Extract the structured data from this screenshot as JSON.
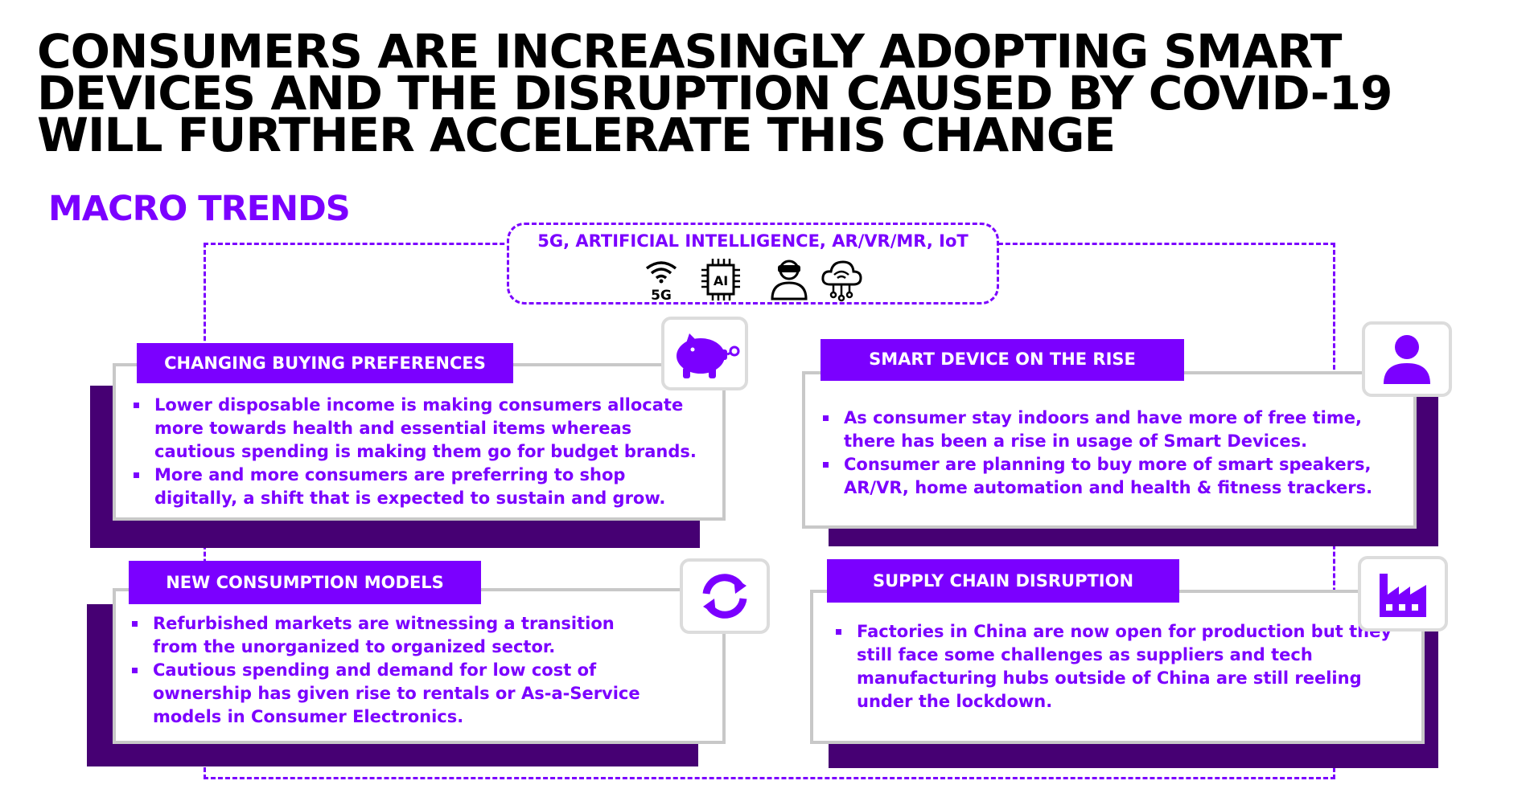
{
  "title_lines": [
    "CONSUMERS ARE INCREASINGLY ADOPTING SMART",
    "DEVICES AND THE DISRUPTION CAUSED BY COVID-19",
    "WILL FURTHER ACCELERATE THIS CHANGE"
  ],
  "section_title": "MACRO TRENDS",
  "tech": {
    "label": "5G, ARTIFICIAL INTELLIGENCE, AR/VR/MR, IoT",
    "icon_5g_text": "5G",
    "icon_ai_text": "AI",
    "icons": [
      "wifi-5g-icon",
      "ai-chip-icon",
      "vr-headset-person-icon",
      "cloud-network-icon"
    ]
  },
  "cards": {
    "buying": {
      "header": "CHANGING BUYING PREFERENCES",
      "icon": "piggy-bank-icon",
      "bullets": [
        [
          "Lower disposable income is making consumers allocate",
          "more towards health and essential items whereas",
          "cautious spending is making them go for budget brands."
        ],
        [
          "More and more consumers are preferring to shop",
          "digitally, a shift that is expected to sustain and grow."
        ]
      ]
    },
    "smart": {
      "header": "SMART DEVICE ON THE RISE",
      "icon": "person-icon",
      "bullets": [
        [
          "As consumer stay indoors and have more of free time,",
          "there has been a rise in usage of Smart Devices."
        ],
        [
          "Consumer are planning to buy more of smart speakers,",
          "AR/VR, home automation and health & fitness trackers."
        ]
      ]
    },
    "consumption": {
      "header": "NEW CONSUMPTION MODELS",
      "icon": "refresh-cycle-icon",
      "bullets": [
        [
          "Refurbished markets are witnessing a transition",
          "from the unorganized to organized sector."
        ],
        [
          "Cautious spending and demand for low cost of",
          "ownership has given rise to rentals or As-a-Service",
          "models in Consumer Electronics."
        ]
      ]
    },
    "supply": {
      "header": "SUPPLY CHAIN DISRUPTION",
      "icon": "factory-icon",
      "bullets": [
        [
          "Factories in China are now open for production but they",
          "still face some challenges as suppliers and tech",
          "manufacturing hubs outside of China are still reeling",
          "under the lockdown."
        ]
      ]
    }
  },
  "colors": {
    "accent": "#7b00ff",
    "shadow": "#460073",
    "border": "#c8c8c8"
  }
}
